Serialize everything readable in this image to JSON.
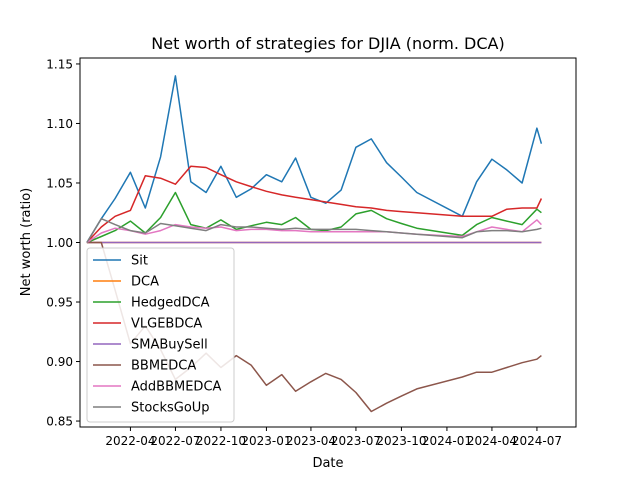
{
  "chart_data": {
    "type": "line",
    "title": "Net worth of strategies for DJIA (norm. DCA)",
    "xlabel": "Date",
    "ylabel": "Net worth (ratio)",
    "xlim": [
      "2021-12-20",
      "2024-09-18"
    ],
    "ylim": [
      0.845,
      1.155
    ],
    "x_ticks": [
      {
        "date": "2022-04-01",
        "label": "2022-04"
      },
      {
        "date": "2022-07-01",
        "label": "2022-07"
      },
      {
        "date": "2022-10-01",
        "label": "2022-10"
      },
      {
        "date": "2023-01-01",
        "label": "2023-01"
      },
      {
        "date": "2023-04-01",
        "label": "2023-04"
      },
      {
        "date": "2023-07-01",
        "label": "2023-07"
      },
      {
        "date": "2023-10-01",
        "label": "2023-10"
      },
      {
        "date": "2024-01-01",
        "label": "2024-01"
      },
      {
        "date": "2024-04-01",
        "label": "2024-04"
      },
      {
        "date": "2024-07-01",
        "label": "2024-07"
      }
    ],
    "y_ticks": [
      {
        "value": 0.85,
        "label": "0.85"
      },
      {
        "value": 0.9,
        "label": "0.90"
      },
      {
        "value": 0.95,
        "label": "0.95"
      },
      {
        "value": 1.0,
        "label": "1.00"
      },
      {
        "value": 1.05,
        "label": "1.05"
      },
      {
        "value": 1.1,
        "label": "1.10"
      },
      {
        "value": 1.15,
        "label": "1.15"
      }
    ],
    "grid": false,
    "legend_position": "lower-left",
    "series": [
      {
        "name": "Sit",
        "color": "#1f77b4",
        "points": [
          [
            "2022-01-03",
            1.0
          ],
          [
            "2022-02-01",
            1.02
          ],
          [
            "2022-03-01",
            1.037
          ],
          [
            "2022-04-01",
            1.059
          ],
          [
            "2022-05-01",
            1.029
          ],
          [
            "2022-06-01",
            1.072
          ],
          [
            "2022-07-01",
            1.14
          ],
          [
            "2022-08-01",
            1.051
          ],
          [
            "2022-09-01",
            1.042
          ],
          [
            "2022-10-01",
            1.064
          ],
          [
            "2022-11-01",
            1.038
          ],
          [
            "2022-12-01",
            1.045
          ],
          [
            "2023-01-01",
            1.057
          ],
          [
            "2023-02-01",
            1.051
          ],
          [
            "2023-03-01",
            1.071
          ],
          [
            "2023-04-01",
            1.038
          ],
          [
            "2023-05-01",
            1.033
          ],
          [
            "2023-06-01",
            1.044
          ],
          [
            "2023-07-01",
            1.08
          ],
          [
            "2023-08-01",
            1.087
          ],
          [
            "2023-09-01",
            1.067
          ],
          [
            "2023-10-01",
            1.055
          ],
          [
            "2023-11-01",
            1.042
          ],
          [
            "2024-02-01",
            1.022
          ],
          [
            "2024-03-01",
            1.051
          ],
          [
            "2024-04-01",
            1.07
          ],
          [
            "2024-05-01",
            1.061
          ],
          [
            "2024-06-01",
            1.05
          ],
          [
            "2024-07-01",
            1.096
          ],
          [
            "2024-07-10",
            1.083
          ]
        ]
      },
      {
        "name": "DCA",
        "color": "#ff7f0e",
        "points": [
          [
            "2022-01-03",
            1.0
          ],
          [
            "2024-07-10",
            1.0
          ]
        ]
      },
      {
        "name": "HedgedDCA",
        "color": "#2ca02c",
        "points": [
          [
            "2022-01-03",
            1.0
          ],
          [
            "2022-02-01",
            1.005
          ],
          [
            "2022-03-01",
            1.01
          ],
          [
            "2022-04-01",
            1.018
          ],
          [
            "2022-05-01",
            1.008
          ],
          [
            "2022-06-01",
            1.021
          ],
          [
            "2022-07-01",
            1.042
          ],
          [
            "2022-08-01",
            1.015
          ],
          [
            "2022-09-01",
            1.012
          ],
          [
            "2022-10-01",
            1.019
          ],
          [
            "2022-11-01",
            1.011
          ],
          [
            "2022-12-01",
            1.014
          ],
          [
            "2023-01-01",
            1.017
          ],
          [
            "2023-02-01",
            1.015
          ],
          [
            "2023-03-01",
            1.021
          ],
          [
            "2023-04-01",
            1.011
          ],
          [
            "2023-05-01",
            1.01
          ],
          [
            "2023-06-01",
            1.013
          ],
          [
            "2023-07-01",
            1.024
          ],
          [
            "2023-08-01",
            1.027
          ],
          [
            "2023-09-01",
            1.02
          ],
          [
            "2023-10-01",
            1.016
          ],
          [
            "2023-11-01",
            1.012
          ],
          [
            "2024-02-01",
            1.006
          ],
          [
            "2024-03-01",
            1.015
          ],
          [
            "2024-04-01",
            1.021
          ],
          [
            "2024-05-01",
            1.018
          ],
          [
            "2024-06-01",
            1.015
          ],
          [
            "2024-07-01",
            1.028
          ],
          [
            "2024-07-10",
            1.025
          ]
        ]
      },
      {
        "name": "VLGEBDCA",
        "color": "#d62728",
        "points": [
          [
            "2022-01-03",
            1.0
          ],
          [
            "2022-02-01",
            1.013
          ],
          [
            "2022-03-01",
            1.022
          ],
          [
            "2022-04-01",
            1.027
          ],
          [
            "2022-05-01",
            1.056
          ],
          [
            "2022-06-01",
            1.054
          ],
          [
            "2022-07-01",
            1.049
          ],
          [
            "2022-08-01",
            1.064
          ],
          [
            "2022-09-01",
            1.063
          ],
          [
            "2022-10-01",
            1.057
          ],
          [
            "2022-11-01",
            1.051
          ],
          [
            "2022-12-01",
            1.047
          ],
          [
            "2023-01-01",
            1.043
          ],
          [
            "2023-02-01",
            1.04
          ],
          [
            "2023-03-01",
            1.038
          ],
          [
            "2023-04-01",
            1.036
          ],
          [
            "2023-05-01",
            1.034
          ],
          [
            "2023-06-01",
            1.032
          ],
          [
            "2023-07-01",
            1.03
          ],
          [
            "2023-08-01",
            1.029
          ],
          [
            "2023-09-01",
            1.027
          ],
          [
            "2023-10-01",
            1.026
          ],
          [
            "2023-11-01",
            1.025
          ],
          [
            "2024-02-01",
            1.022
          ],
          [
            "2024-03-01",
            1.022
          ],
          [
            "2024-04-01",
            1.022
          ],
          [
            "2024-05-01",
            1.028
          ],
          [
            "2024-06-01",
            1.029
          ],
          [
            "2024-07-01",
            1.029
          ],
          [
            "2024-07-10",
            1.037
          ]
        ]
      },
      {
        "name": "SMABuySell",
        "color": "#9467bd",
        "points": [
          [
            "2022-01-03",
            1.0
          ],
          [
            "2024-07-10",
            1.0
          ]
        ]
      },
      {
        "name": "BBMEDCA",
        "color": "#8c564b",
        "points": [
          [
            "2022-01-03",
            1.0
          ],
          [
            "2022-02-01",
            1.0
          ],
          [
            "2022-03-01",
            0.96
          ],
          [
            "2022-04-01",
            0.915
          ],
          [
            "2022-05-01",
            0.93
          ],
          [
            "2022-06-01",
            0.91
          ],
          [
            "2022-07-01",
            0.885
          ],
          [
            "2022-08-01",
            0.895
          ],
          [
            "2022-09-01",
            0.907
          ],
          [
            "2022-10-01",
            0.895
          ],
          [
            "2022-11-01",
            0.905
          ],
          [
            "2022-12-01",
            0.897
          ],
          [
            "2023-01-01",
            0.88
          ],
          [
            "2023-02-01",
            0.889
          ],
          [
            "2023-03-01",
            0.875
          ],
          [
            "2023-04-01",
            0.883
          ],
          [
            "2023-05-01",
            0.89
          ],
          [
            "2023-06-01",
            0.885
          ],
          [
            "2023-07-01",
            0.874
          ],
          [
            "2023-08-01",
            0.858
          ],
          [
            "2023-09-01",
            0.865
          ],
          [
            "2023-10-01",
            0.871
          ],
          [
            "2023-11-01",
            0.877
          ],
          [
            "2024-02-01",
            0.887
          ],
          [
            "2024-03-01",
            0.891
          ],
          [
            "2024-04-01",
            0.891
          ],
          [
            "2024-05-01",
            0.895
          ],
          [
            "2024-06-01",
            0.899
          ],
          [
            "2024-07-01",
            0.902
          ],
          [
            "2024-07-10",
            0.905
          ]
        ]
      },
      {
        "name": "AddBBMEDCA",
        "color": "#e377c2",
        "points": [
          [
            "2022-01-03",
            1.0
          ],
          [
            "2022-02-01",
            1.008
          ],
          [
            "2022-03-01",
            1.012
          ],
          [
            "2022-04-01",
            1.01
          ],
          [
            "2022-05-01",
            1.007
          ],
          [
            "2022-06-01",
            1.01
          ],
          [
            "2022-07-01",
            1.015
          ],
          [
            "2022-08-01",
            1.013
          ],
          [
            "2022-09-01",
            1.012
          ],
          [
            "2022-10-01",
            1.013
          ],
          [
            "2022-11-01",
            1.01
          ],
          [
            "2022-12-01",
            1.011
          ],
          [
            "2023-01-01",
            1.011
          ],
          [
            "2023-02-01",
            1.01
          ],
          [
            "2023-03-01",
            1.01
          ],
          [
            "2023-04-01",
            1.009
          ],
          [
            "2023-05-01",
            1.009
          ],
          [
            "2023-06-01",
            1.009
          ],
          [
            "2023-07-01",
            1.009
          ],
          [
            "2023-08-01",
            1.009
          ],
          [
            "2023-09-01",
            1.009
          ],
          [
            "2023-10-01",
            1.008
          ],
          [
            "2023-11-01",
            1.007
          ],
          [
            "2024-02-01",
            1.005
          ],
          [
            "2024-03-01",
            1.009
          ],
          [
            "2024-04-01",
            1.013
          ],
          [
            "2024-05-01",
            1.011
          ],
          [
            "2024-06-01",
            1.009
          ],
          [
            "2024-07-01",
            1.019
          ],
          [
            "2024-07-10",
            1.015
          ]
        ]
      },
      {
        "name": "StocksGoUp",
        "color": "#7f7f7f",
        "points": [
          [
            "2022-01-03",
            1.0
          ],
          [
            "2022-02-01",
            1.02
          ],
          [
            "2022-03-01",
            1.015
          ],
          [
            "2022-04-01",
            1.01
          ],
          [
            "2022-05-01",
            1.008
          ],
          [
            "2022-06-01",
            1.016
          ],
          [
            "2022-07-01",
            1.014
          ],
          [
            "2022-08-01",
            1.012
          ],
          [
            "2022-09-01",
            1.01
          ],
          [
            "2022-10-01",
            1.015
          ],
          [
            "2022-11-01",
            1.013
          ],
          [
            "2022-12-01",
            1.013
          ],
          [
            "2023-01-01",
            1.012
          ],
          [
            "2023-02-01",
            1.011
          ],
          [
            "2023-03-01",
            1.012
          ],
          [
            "2023-04-01",
            1.011
          ],
          [
            "2023-05-01",
            1.011
          ],
          [
            "2023-06-01",
            1.011
          ],
          [
            "2023-07-01",
            1.011
          ],
          [
            "2023-08-01",
            1.01
          ],
          [
            "2023-09-01",
            1.009
          ],
          [
            "2023-10-01",
            1.008
          ],
          [
            "2023-11-01",
            1.007
          ],
          [
            "2024-02-01",
            1.004
          ],
          [
            "2024-03-01",
            1.009
          ],
          [
            "2024-04-01",
            1.01
          ],
          [
            "2024-05-01",
            1.01
          ],
          [
            "2024-06-01",
            1.009
          ],
          [
            "2024-07-01",
            1.011
          ],
          [
            "2024-07-10",
            1.012
          ]
        ]
      }
    ]
  }
}
